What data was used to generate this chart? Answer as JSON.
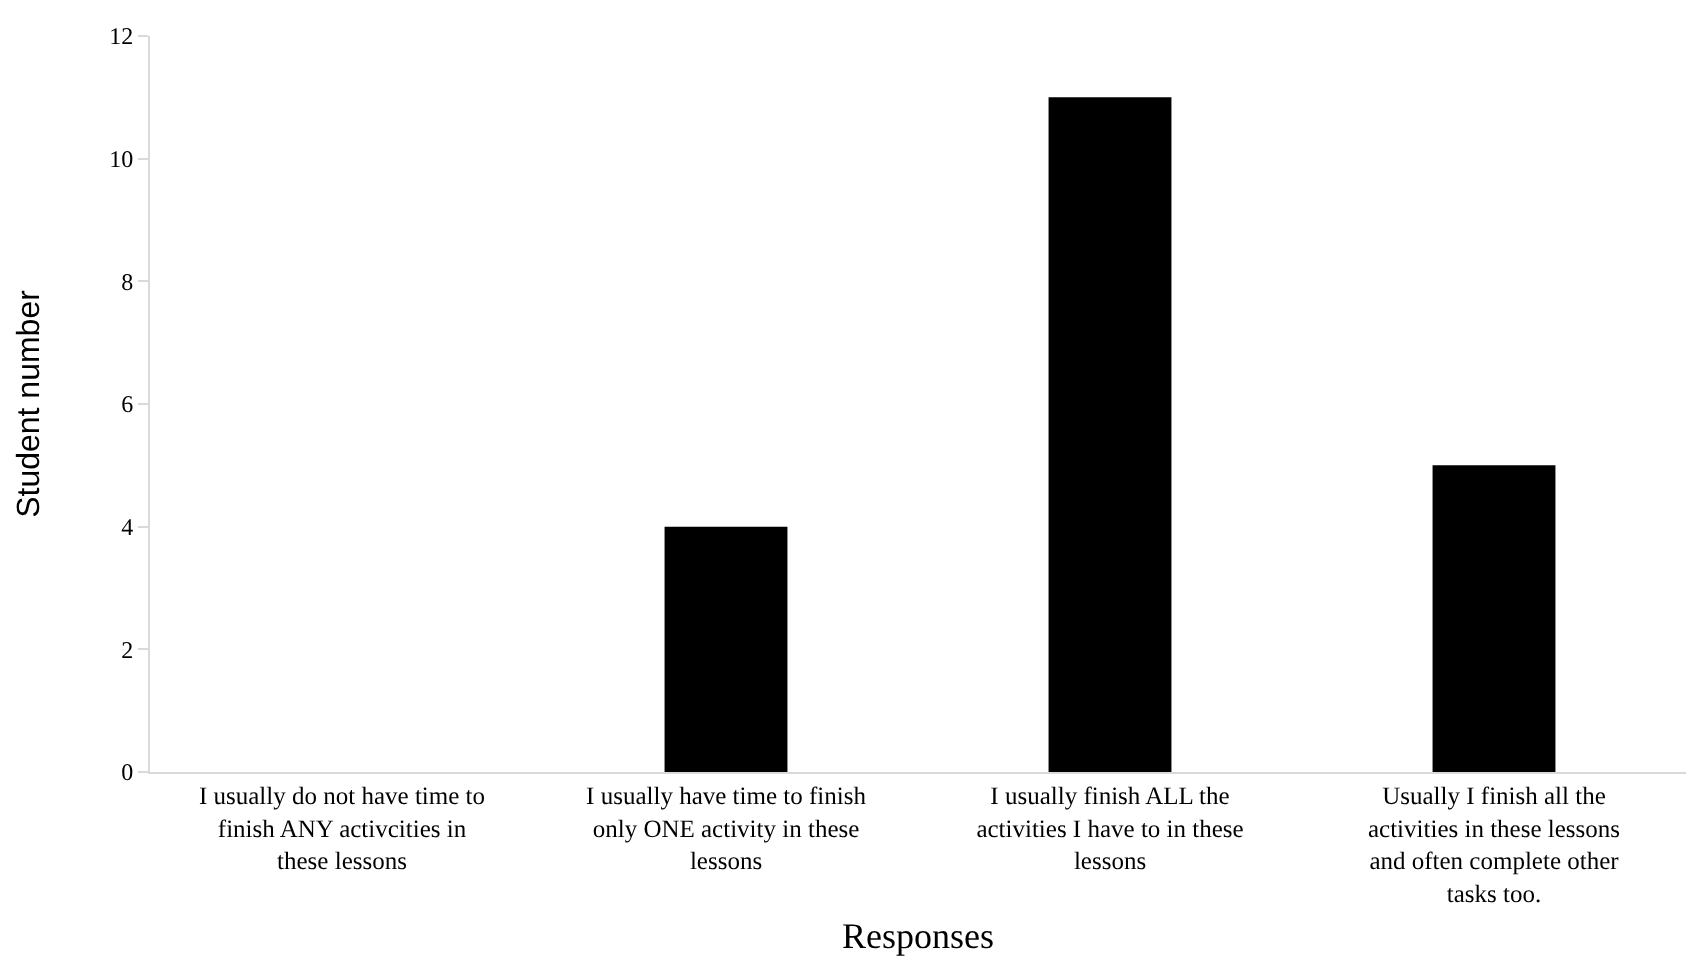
{
  "chart_data": {
    "type": "bar",
    "xlabel": "Responses",
    "ylabel": "Student number",
    "categories": [
      "I usually do not have time to finish ANY activcities in these lessons",
      "I usually have time to finish only ONE activity in these lessons",
      "I usually finish ALL the activities I have to in these lessons",
      "Usually I finish all the activities in these lessons and often complete other tasks too."
    ],
    "values": [
      0,
      4,
      11,
      5
    ],
    "color": "#000000",
    "ylim": [
      0,
      12
    ],
    "yticks": [
      0,
      2,
      4,
      6,
      8,
      10,
      12
    ]
  }
}
